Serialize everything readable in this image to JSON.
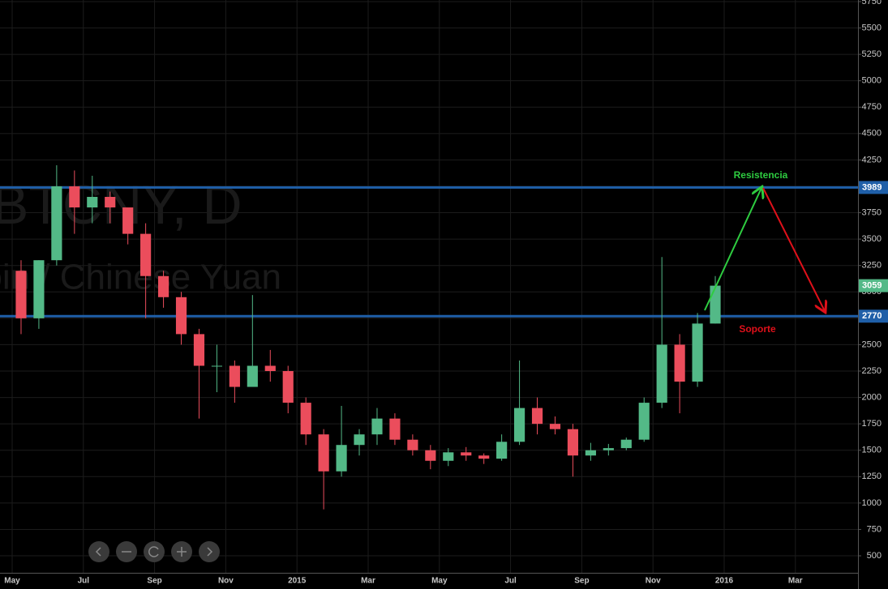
{
  "chart_data": {
    "type": "candlestick",
    "watermark_title": "BTCNY, D",
    "watermark_subtitle": "Bitcoin / Chinese Yuan",
    "categories": [
      "May",
      null,
      null,
      null,
      "Jul",
      null,
      null,
      null,
      "Sep",
      null,
      null,
      null,
      "Nov",
      null,
      null,
      null,
      "2015",
      null,
      null,
      null,
      "Mar",
      null,
      null,
      null,
      "May",
      null,
      null,
      null,
      "Jul",
      null,
      null,
      null,
      "Sep",
      null,
      null,
      null,
      "Nov",
      null,
      null,
      null,
      "2016",
      null,
      null,
      null,
      "Mar",
      null,
      null
    ],
    "open": [
      3200,
      2750,
      3300,
      4000,
      3800,
      3900,
      3800,
      3550,
      3150,
      2950,
      2600,
      2300,
      2300,
      2100,
      2300,
      2250,
      1950,
      1650,
      1300,
      1550,
      1650,
      1800,
      1600,
      1500,
      1400,
      1480,
      1450,
      1420,
      1580,
      1900,
      1750,
      1700,
      1450,
      1500,
      1520,
      1600,
      1950,
      2500,
      2150,
      2700,
      null,
      null,
      null,
      null,
      null,
      null,
      null
    ],
    "high": [
      3300,
      3300,
      4200,
      4150,
      4100,
      3950,
      3800,
      3650,
      3200,
      3000,
      2650,
      2500,
      2350,
      2970,
      2450,
      2300,
      2000,
      1700,
      1920,
      1700,
      1900,
      1850,
      1650,
      1550,
      1520,
      1530,
      1470,
      1650,
      2350,
      2000,
      1820,
      1750,
      1570,
      1560,
      1620,
      2000,
      3330,
      2600,
      2800,
      3150,
      null,
      null,
      null,
      null,
      null,
      null,
      null
    ],
    "low": [
      2600,
      2650,
      3250,
      3550,
      3650,
      3650,
      3450,
      2750,
      2850,
      2500,
      1800,
      2050,
      1950,
      2150,
      2150,
      1850,
      1550,
      940,
      1250,
      1450,
      1550,
      1550,
      1450,
      1320,
      1350,
      1400,
      1370,
      1400,
      1550,
      1650,
      1650,
      1250,
      1400,
      1450,
      1500,
      1580,
      1900,
      1850,
      2100,
      2700,
      null,
      null,
      null,
      null,
      null,
      null,
      null
    ],
    "close": [
      2750,
      3300,
      4000,
      3800,
      3900,
      3800,
      3550,
      3150,
      2950,
      2600,
      2300,
      2300,
      2100,
      2300,
      2250,
      1950,
      1650,
      1300,
      1550,
      1650,
      1800,
      1600,
      1500,
      1400,
      1480,
      1450,
      1420,
      1580,
      1900,
      1750,
      1700,
      1450,
      1500,
      1520,
      1600,
      1950,
      2500,
      2150,
      2700,
      3059,
      null,
      null,
      null,
      null,
      null,
      null,
      null
    ],
    "up_color": "#53b987",
    "down_color": "#eb4d5c",
    "ylim": [
      339,
      5765
    ],
    "yticks": [
      500,
      750,
      1000,
      1250,
      1500,
      1750,
      2000,
      2250,
      2500,
      2750,
      3000,
      3250,
      3500,
      3750,
      4000,
      4250,
      4500,
      4750,
      5000,
      5250,
      5500,
      5750
    ],
    "grid": true,
    "horizontal_lines": [
      {
        "value": 3989,
        "color": "#1f5fa8"
      },
      {
        "value": 2770,
        "color": "#1f5fa8"
      }
    ],
    "last_price": 3059,
    "last_price_color": "#53b987",
    "annotations": [
      {
        "text": "Resistencia",
        "color": "#2ecc40"
      },
      {
        "text": "Soporte",
        "color": "#e0101a"
      }
    ]
  }
}
